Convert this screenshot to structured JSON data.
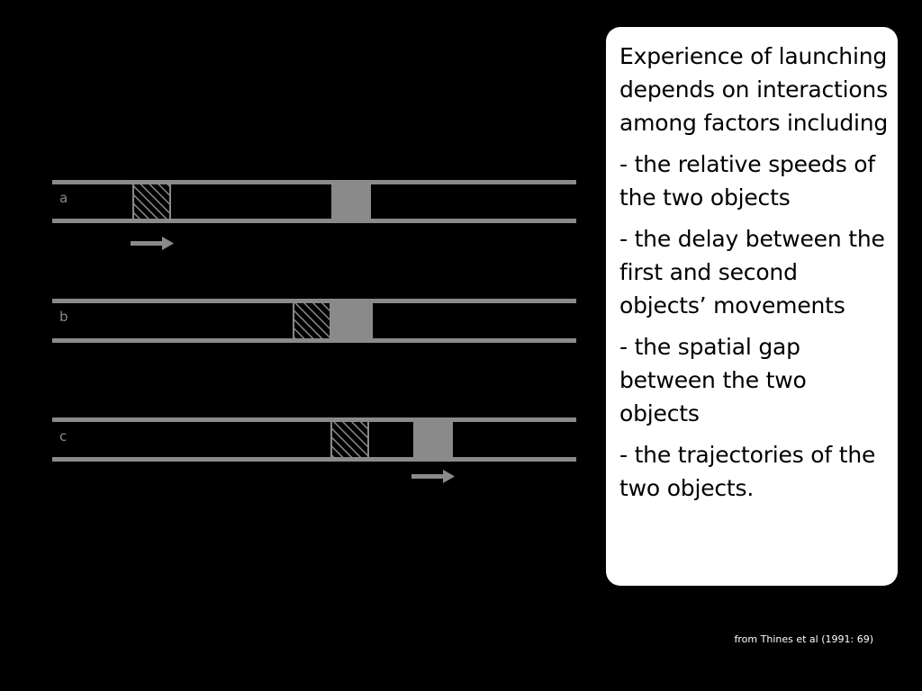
{
  "diagram": {
    "panels": [
      {
        "letter": "a",
        "arrow_under": "hatched-square"
      },
      {
        "letter": "b",
        "arrow_under": "none"
      },
      {
        "letter": "c",
        "arrow_under": "grey-square"
      }
    ],
    "colors": {
      "track": "#8a8a8a",
      "hatch": "#8a8a8a",
      "solid_square": "#8a8a8a",
      "background": "#000000"
    }
  },
  "textbox": {
    "intro": "Experience of launching depends on interactions among factors including",
    "items": [
      "- the relative speeds of the two objects",
      "- the delay between the first and second objects’ movements",
      "- the spatial gap between the two objects",
      "- the trajectories of the two objects."
    ]
  },
  "caption": "from Thines et al (1991: 69)"
}
